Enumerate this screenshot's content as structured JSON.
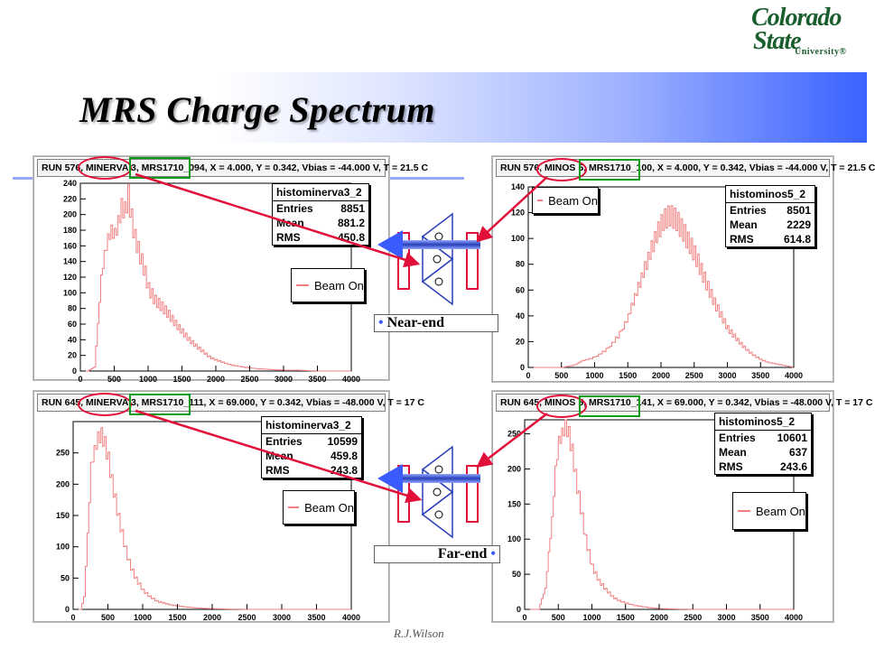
{
  "slide": {
    "title": "MRS Charge Spectrum",
    "footer": "R.J.Wilson",
    "logo": {
      "line1": "Colorado",
      "line2": "State",
      "line3": "University®"
    },
    "near_label": "Near-end",
    "far_label": "Far-end",
    "accent_blue": "#3a5cff",
    "highlight_red": "#e0103a",
    "highlight_green": "#0a9c1a"
  },
  "panels": [
    {
      "header": "RUN 576, MINERVA 3, MRS1710_094, X = 4.000, Y = 0.342, Vbias = -44.000 V, T = 21.5 C",
      "stats": {
        "name": "histominerva3_2",
        "entries_label": "Entries",
        "entries": "8851",
        "mean_label": "Mean",
        "mean": "881.2",
        "rms_label": "RMS",
        "rms": "450.8"
      },
      "legend": "Beam On"
    },
    {
      "header": "RUN 576, MINOS 5, MRS1710_100, X = 4.000, Y = 0.342, Vbias = -44.000 V, T = 21.5 C",
      "stats": {
        "name": "histominos5_2",
        "entries_label": "Entries",
        "entries": "8501",
        "mean_label": "Mean",
        "mean": "2229",
        "rms_label": "RMS",
        "rms": "614.8"
      },
      "legend": "Beam On"
    },
    {
      "header": "RUN 645, MINERVA 3, MRS1710_111, X = 69.000, Y = 0.342, Vbias = -48.000 V, T = 17 C",
      "stats": {
        "name": "histominerva3_2",
        "entries_label": "Entries",
        "entries": "10599",
        "mean_label": "Mean",
        "mean": "459.8",
        "rms_label": "RMS",
        "rms": "243.8"
      },
      "legend": "Beam On"
    },
    {
      "header": "RUN 645, MINOS 5, MRS1710_141, X = 69.000, Y = 0.342, Vbias = -48.000 V, T = 17 C",
      "stats": {
        "name": "histominos5_2",
        "entries_label": "Entries",
        "entries": "10601",
        "mean_label": "Mean",
        "mean": "637",
        "rms_label": "RMS",
        "rms": "243.6"
      },
      "legend": "Beam On"
    }
  ],
  "chart_data": [
    {
      "type": "area",
      "series": [
        {
          "name": "Beam On",
          "color": "#f08080",
          "x": [
            0,
            100,
            200,
            250,
            300,
            350,
            400,
            450,
            500,
            550,
            600,
            650,
            700,
            750,
            800,
            850,
            900,
            950,
            1000,
            1100,
            1200,
            1300,
            1400,
            1500,
            1600,
            1700,
            1800,
            1900,
            2000,
            2200,
            2400,
            2600,
            2800,
            3000,
            3200,
            3500,
            4000
          ],
          "values": [
            0,
            0,
            5,
            60,
            120,
            150,
            170,
            180,
            175,
            190,
            210,
            205,
            225,
            195,
            170,
            155,
            140,
            125,
            105,
            90,
            82,
            72,
            60,
            50,
            40,
            32,
            25,
            18,
            14,
            8,
            5,
            3,
            2,
            1,
            1,
            0,
            0
          ]
        }
      ],
      "xlim": [
        0,
        4000
      ],
      "ylim": [
        0,
        240
      ],
      "xticks": [
        0,
        500,
        1000,
        1500,
        2000,
        2500,
        3000,
        3500,
        4000
      ],
      "yticks": [
        0,
        20,
        40,
        60,
        80,
        100,
        120,
        140,
        160,
        180,
        200,
        220,
        240
      ]
    },
    {
      "type": "area",
      "series": [
        {
          "name": "Beam On",
          "color": "#f08080",
          "x": [
            0,
            500,
            700,
            800,
            1000,
            1200,
            1400,
            1500,
            1600,
            1700,
            1800,
            1900,
            2000,
            2100,
            2200,
            2300,
            2400,
            2500,
            2600,
            2700,
            2800,
            2900,
            3000,
            3100,
            3200,
            3300,
            3400,
            3500,
            3600,
            3700,
            3800,
            3900,
            4000
          ],
          "values": [
            0,
            0,
            2,
            5,
            8,
            15,
            28,
            40,
            55,
            70,
            85,
            100,
            112,
            118,
            116,
            108,
            98,
            88,
            75,
            62,
            50,
            40,
            30,
            24,
            18,
            13,
            9,
            6,
            4,
            3,
            2,
            1,
            0
          ]
        }
      ],
      "xlim": [
        0,
        4000
      ],
      "ylim": [
        0,
        140
      ],
      "xticks": [
        0,
        500,
        1000,
        1500,
        2000,
        2500,
        3000,
        3500,
        4000
      ],
      "yticks": [
        0,
        20,
        40,
        60,
        80,
        100,
        120,
        140
      ]
    },
    {
      "type": "area",
      "series": [
        {
          "name": "Beam On",
          "color": "#f08080",
          "x": [
            0,
            100,
            150,
            200,
            250,
            300,
            350,
            400,
            450,
            500,
            550,
            600,
            650,
            700,
            750,
            800,
            850,
            900,
            1000,
            1100,
            1200,
            1400,
            1600,
            1800,
            2000,
            2500,
            3000,
            4000
          ],
          "values": [
            0,
            0,
            20,
            120,
            230,
            255,
            275,
            280,
            265,
            240,
            205,
            175,
            145,
            120,
            95,
            75,
            60,
            48,
            30,
            20,
            13,
            7,
            4,
            2,
            1,
            0,
            0,
            0
          ]
        }
      ],
      "xlim": [
        0,
        4000
      ],
      "ylim": [
        0,
        300
      ],
      "xticks": [
        0,
        500,
        1000,
        1500,
        2000,
        2500,
        3000,
        3500,
        4000
      ],
      "yticks": [
        0,
        50,
        100,
        150,
        200,
        250
      ]
    },
    {
      "type": "area",
      "series": [
        {
          "name": "Beam On",
          "color": "#f08080",
          "x": [
            0,
            200,
            300,
            400,
            450,
            500,
            550,
            600,
            650,
            700,
            750,
            800,
            850,
            900,
            950,
            1000,
            1100,
            1200,
            1300,
            1400,
            1600,
            1800,
            2000,
            2500,
            3000,
            4000
          ],
          "values": [
            0,
            0,
            30,
            130,
            200,
            240,
            250,
            265,
            250,
            225,
            190,
            160,
            130,
            100,
            80,
            60,
            40,
            28,
            18,
            12,
            6,
            3,
            1,
            0,
            0,
            0
          ]
        }
      ],
      "xlim": [
        0,
        4000
      ],
      "ylim": [
        0,
        270
      ],
      "xticks": [
        0,
        500,
        1000,
        1500,
        2000,
        2500,
        3000,
        3500,
        4000
      ],
      "yticks": [
        0,
        50,
        100,
        150,
        200,
        250
      ]
    }
  ]
}
